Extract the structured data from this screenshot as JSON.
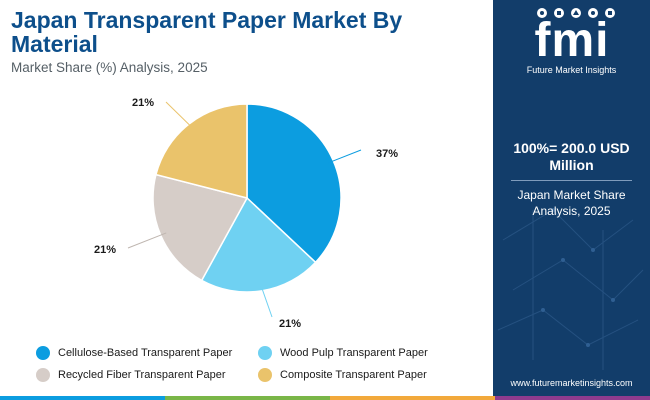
{
  "header": {
    "title": "Japan Transparent Paper Market By Material",
    "subtitle": "Market Share (%) Analysis, 2025"
  },
  "chart_data": {
    "type": "pie",
    "title": "Japan Transparent Paper Market By Material",
    "subtitle": "Market Share (%) Analysis, 2025",
    "categories": [
      "Cellulose-Based Transparent Paper",
      "Wood Pulp Transparent Paper",
      "Recycled Fiber Transparent Paper",
      "Composite Transparent Paper"
    ],
    "values": [
      37,
      21,
      21,
      21
    ],
    "labels": [
      "37%",
      "21%",
      "21%",
      "21%"
    ],
    "colors": [
      "#0c9de0",
      "#6fd1f2",
      "#d6cdc8",
      "#eac36b"
    ],
    "legend_position": "bottom"
  },
  "sidebar": {
    "logo_text": "fmi",
    "logo_tagline": "Future Market Insights",
    "total_label": "100%= 200.0 USD Million",
    "total_sub": "Japan Market Share Analysis, 2025",
    "website": "www.futuremarketinsights.com",
    "bg_color": "#123d6a"
  },
  "bottom_bar_colors": [
    "#0c9de0",
    "#7ab648",
    "#f2a93b",
    "#8e3b8e",
    "#d33f3f"
  ]
}
